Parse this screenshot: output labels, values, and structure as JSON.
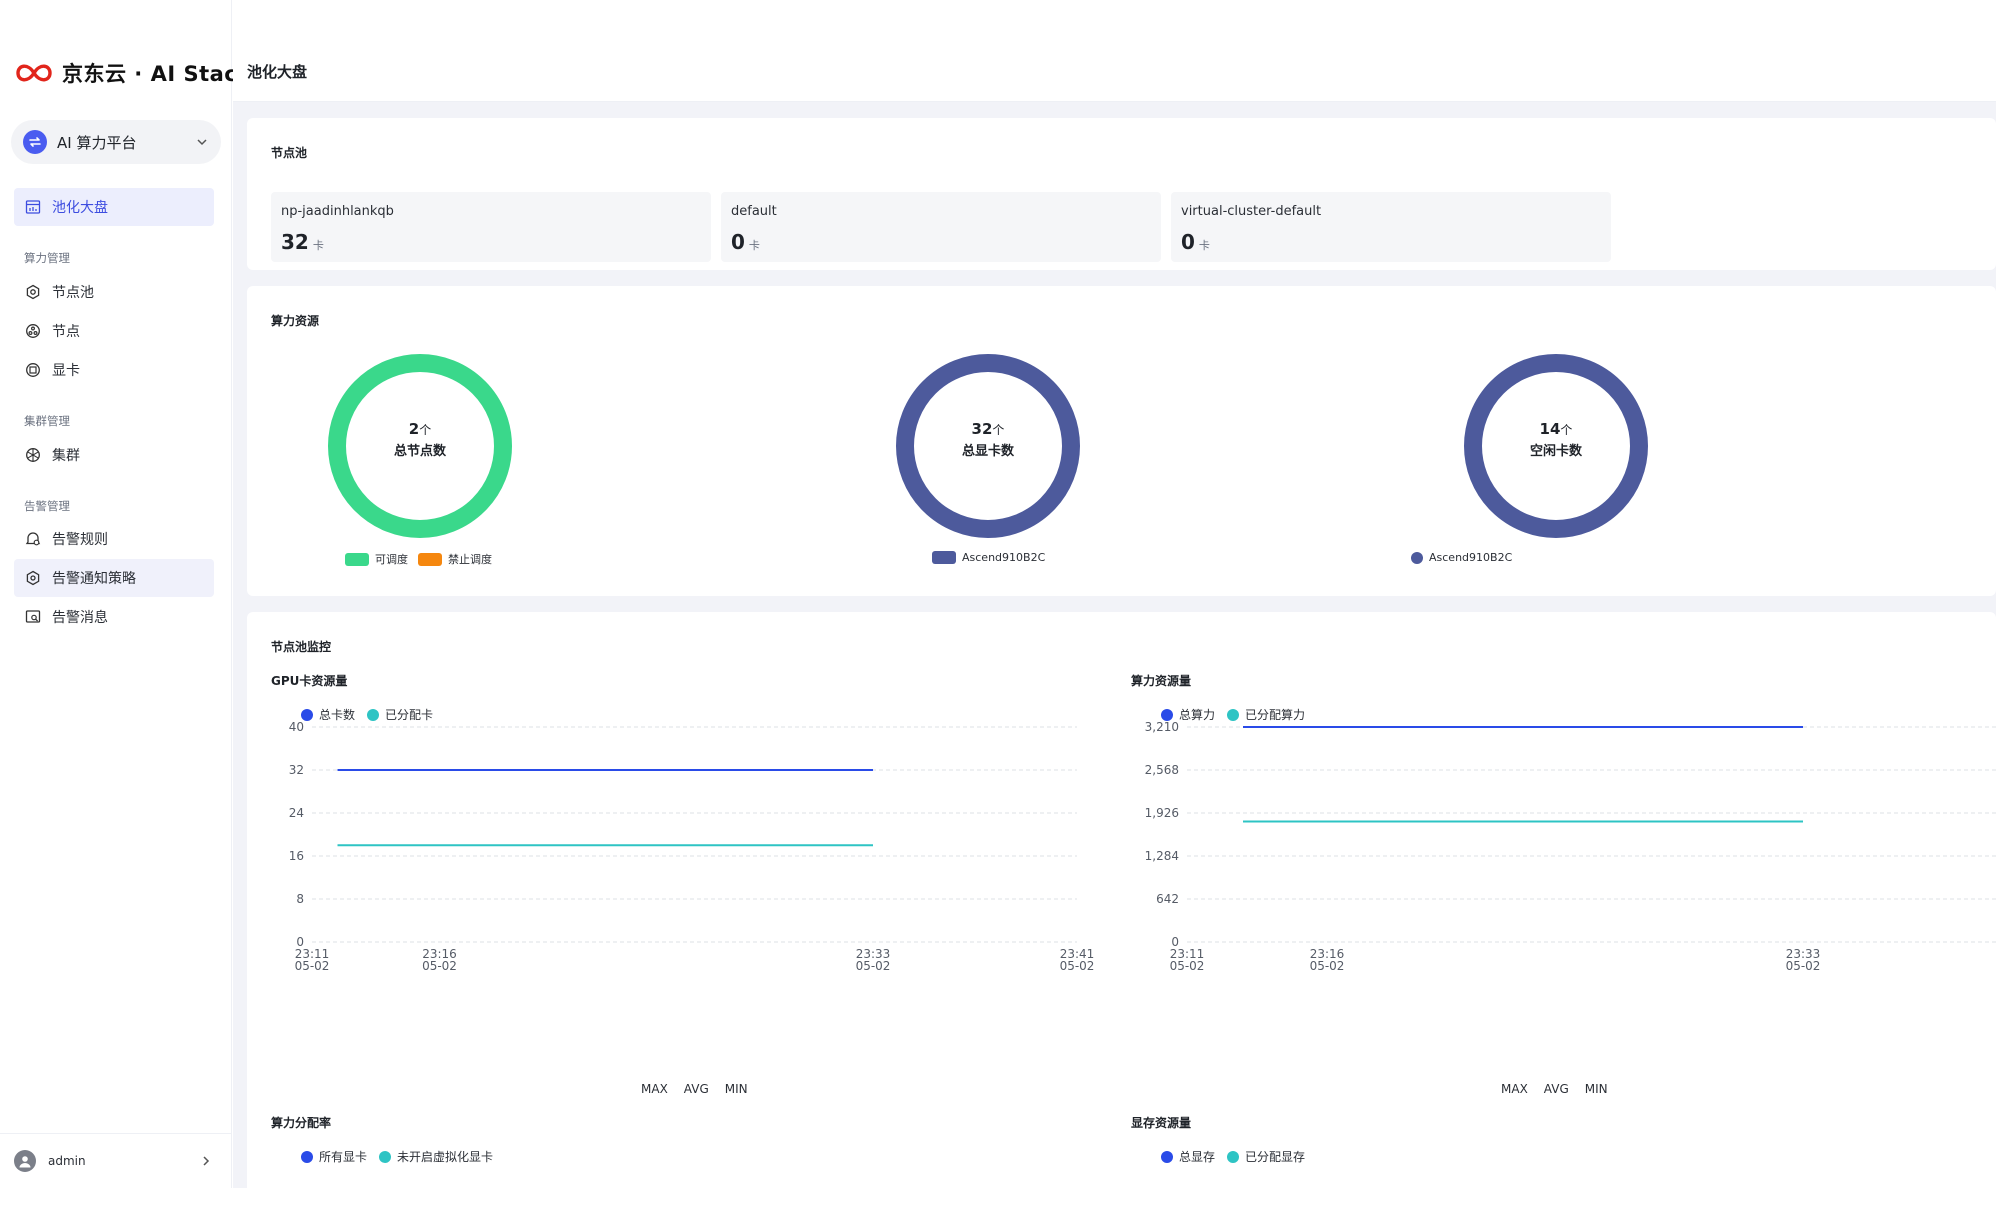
{
  "brand": {
    "logo_text": "京东云 · AI Stack"
  },
  "platform_selector": {
    "label": "AI 算力平台"
  },
  "sidebar": {
    "active_item": "池化大盘",
    "groups": [
      {
        "title": "算力管理",
        "items": [
          "节点池",
          "节点",
          "显卡"
        ]
      },
      {
        "title": "集群管理",
        "items": [
          "集群"
        ]
      },
      {
        "title": "告警管理",
        "items": [
          "告警规则",
          "告警通知策略",
          "告警消息"
        ]
      }
    ]
  },
  "user": {
    "name": "admin"
  },
  "header": {
    "title": "池化大盘"
  },
  "node_pools": {
    "title": "节点池",
    "unit": "卡",
    "pools": [
      {
        "name": "np-jaadinhlankqb",
        "count": "32"
      },
      {
        "name": "default",
        "count": "0"
      },
      {
        "name": "virtual-cluster-default",
        "count": "0"
      }
    ]
  },
  "compute_resources": {
    "title": "算力资源",
    "unit": "个",
    "donuts": [
      {
        "value": "2",
        "label": "总节点数",
        "color": "#3ad88b",
        "legend": [
          {
            "name": "可调度",
            "color": "#3ad88b"
          },
          {
            "name": "禁止调度",
            "color": "#f5870f"
          }
        ]
      },
      {
        "value": "32",
        "label": "总显卡数",
        "color": "#4d5a9c",
        "legend": [
          {
            "name": "Ascend910B2C",
            "color": "#4d5a9c"
          }
        ]
      },
      {
        "value": "14",
        "label": "空闲卡数",
        "color": "#4d5a9c",
        "legend": [
          {
            "name": "Ascend910B2C",
            "color": "#4d5a9c"
          }
        ]
      }
    ]
  },
  "monitor": {
    "title": "节点池监控",
    "stats_labels": [
      "MAX",
      "AVG",
      "MIN"
    ],
    "bottom_charts": [
      {
        "title": "算力分配率",
        "legend": [
          {
            "name": "所有显卡",
            "color": "#2a4be8"
          },
          {
            "name": "未开启虚拟化显卡",
            "color": "#2ec4c4"
          }
        ]
      },
      {
        "title": "显存资源量",
        "legend": [
          {
            "name": "总显存",
            "color": "#2a4be8"
          },
          {
            "name": "已分配显存",
            "color": "#2ec4c4"
          }
        ]
      }
    ]
  },
  "chart_data": [
    {
      "type": "line",
      "title": "GPU卡资源量",
      "x_ticks": [
        [
          "23:11",
          "05-02"
        ],
        [
          "23:16",
          "05-02"
        ],
        [
          "23:33",
          "05-02"
        ],
        [
          "23:41",
          "05-02"
        ]
      ],
      "x_range": [
        "23:11",
        "23:41"
      ],
      "y_ticks": [
        "0",
        "8",
        "16",
        "24",
        "32",
        "40"
      ],
      "ylim": [
        0,
        40
      ],
      "grid": true,
      "series": [
        {
          "name": "总卡数",
          "color": "#2a4be8",
          "x": [
            "23:12",
            "23:33"
          ],
          "values": [
            32,
            32
          ]
        },
        {
          "name": "已分配卡",
          "color": "#2ec4c4",
          "x": [
            "23:12",
            "23:33"
          ],
          "values": [
            18,
            18
          ]
        }
      ]
    },
    {
      "type": "line",
      "title": "算力资源量",
      "x_ticks": [
        [
          "23:11",
          "05-02"
        ],
        [
          "23:16",
          "05-02"
        ],
        [
          "23:33",
          "05-02"
        ],
        [
          "23:41",
          "05-02"
        ]
      ],
      "x_range": [
        "23:11",
        "23:41"
      ],
      "y_ticks": [
        "0",
        "642",
        "1,284",
        "1,926",
        "2,568",
        "3,210"
      ],
      "ylim": [
        0,
        3210
      ],
      "grid": true,
      "series": [
        {
          "name": "总算力",
          "color": "#2a4be8",
          "x": [
            "23:13",
            "23:33"
          ],
          "values": [
            3210,
            3210
          ]
        },
        {
          "name": "已分配算力",
          "color": "#2ec4c4",
          "x": [
            "23:13",
            "23:33"
          ],
          "values": [
            1800,
            1800
          ]
        }
      ]
    }
  ]
}
